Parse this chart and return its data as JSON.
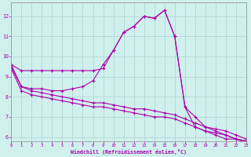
{
  "background_color": "#d0f0ee",
  "grid_color": "#b0d8d5",
  "line_color": "#aa00aa",
  "xlabel": "Windchill (Refroidissement éolien,°C)",
  "xlim": [
    0,
    23
  ],
  "ylim": [
    5.8,
    12.7
  ],
  "xticks": [
    0,
    1,
    2,
    3,
    4,
    5,
    6,
    7,
    8,
    9,
    10,
    11,
    12,
    13,
    14,
    15,
    16,
    17,
    18,
    19,
    20,
    21,
    22,
    23
  ],
  "yticks": [
    6,
    7,
    8,
    9,
    10,
    11,
    12
  ],
  "curve1_x": [
    0,
    1,
    2,
    3,
    4,
    5,
    6,
    7,
    8,
    9,
    10,
    11,
    12,
    13,
    14,
    15,
    16,
    17,
    18,
    19,
    20,
    21,
    22,
    23
  ],
  "curve1_y": [
    9.6,
    9.3,
    9.3,
    9.3,
    9.3,
    9.3,
    9.3,
    9.3,
    9.3,
    9.4,
    10.3,
    11.2,
    11.5,
    12.0,
    11.9,
    12.3,
    11.0,
    7.5,
    6.5,
    6.3,
    6.1,
    5.9,
    5.9,
    5.8
  ],
  "curve2_x": [
    0,
    1,
    2,
    3,
    4,
    5,
    6,
    7,
    8,
    9,
    10,
    11,
    12,
    13,
    14,
    15,
    16,
    17,
    18,
    19,
    20,
    21,
    22,
    23
  ],
  "curve2_y": [
    9.6,
    8.5,
    8.4,
    8.4,
    8.3,
    8.3,
    8.4,
    8.5,
    8.8,
    9.6,
    10.3,
    11.2,
    11.5,
    12.0,
    11.9,
    12.3,
    11.0,
    7.5,
    7.0,
    6.5,
    6.3,
    6.1,
    5.9,
    5.8
  ],
  "curve3_x": [
    0,
    1,
    2,
    3,
    4,
    5,
    6,
    7,
    8,
    9,
    10,
    11,
    12,
    13,
    14,
    15,
    16,
    17,
    18,
    19,
    20,
    21,
    22,
    23
  ],
  "curve3_y": [
    9.5,
    8.5,
    8.3,
    8.2,
    8.1,
    8.0,
    7.9,
    7.8,
    7.7,
    7.7,
    7.6,
    7.5,
    7.4,
    7.4,
    7.3,
    7.2,
    7.1,
    6.9,
    6.7,
    6.5,
    6.4,
    6.3,
    6.1,
    5.9
  ],
  "curve4_x": [
    0,
    1,
    2,
    3,
    4,
    5,
    6,
    7,
    8,
    9,
    10,
    11,
    12,
    13,
    14,
    15,
    16,
    17,
    18,
    19,
    20,
    21,
    22,
    23
  ],
  "curve4_y": [
    9.4,
    8.3,
    8.1,
    8.0,
    7.9,
    7.8,
    7.7,
    7.6,
    7.5,
    7.5,
    7.4,
    7.3,
    7.2,
    7.1,
    7.0,
    7.0,
    6.9,
    6.7,
    6.5,
    6.3,
    6.2,
    6.1,
    5.9,
    5.7
  ]
}
